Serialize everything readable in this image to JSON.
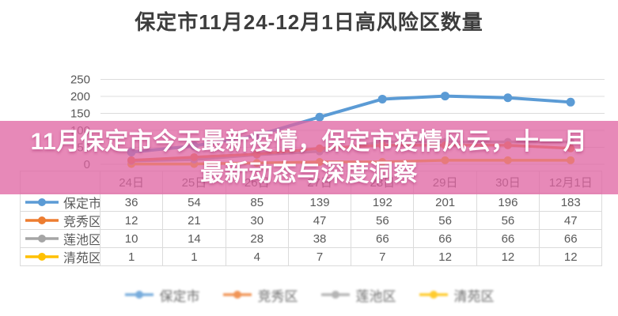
{
  "title": "保定市11月24-12月1日高风险区数量",
  "overlay_banner": {
    "line1": "11月保定市今天最新疫情，保定市疫情风云，十一月",
    "line2": "最新动态与深度洞察",
    "background_color": "#E064A2",
    "text_color": "#FFFFFF"
  },
  "chart_data": {
    "type": "line",
    "title": "保定市11月24-12月1日高风险区数量",
    "categories": [
      "24日",
      "25日",
      "26日",
      "27日",
      "28日",
      "29日",
      "30日",
      "12月1日"
    ],
    "series": [
      {
        "name": "保定市",
        "color": "#5B9BD5",
        "values": [
          36,
          54,
          85,
          139,
          192,
          201,
          196,
          183
        ]
      },
      {
        "name": "竞秀区",
        "color": "#ED7D31",
        "values": [
          12,
          21,
          30,
          47,
          56,
          56,
          56,
          47
        ]
      },
      {
        "name": "莲池区",
        "color": "#A5A5A5",
        "values": [
          10,
          14,
          28,
          38,
          66,
          66,
          66,
          66
        ]
      },
      {
        "name": "清苑区",
        "color": "#FFC000",
        "values": [
          1,
          1,
          4,
          7,
          7,
          12,
          12,
          12
        ]
      }
    ],
    "ylim": [
      0,
      250
    ],
    "yticks": [
      0,
      50,
      100,
      150,
      200,
      250
    ],
    "grid": true,
    "legend_position": "bottom",
    "data_table_shown": true,
    "grid_color": "#DCDCDC",
    "tick_label_color": "#565656"
  }
}
